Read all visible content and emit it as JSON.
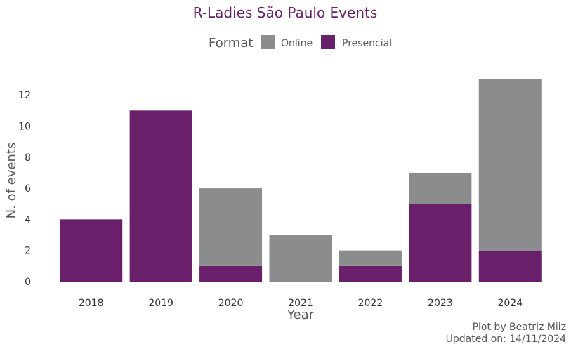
{
  "chart_data": {
    "type": "bar",
    "stacked": true,
    "title": "R-Ladies São Paulo Events",
    "xlabel": "Year",
    "ylabel": "N. of events",
    "categories": [
      "2018",
      "2019",
      "2020",
      "2021",
      "2022",
      "2023",
      "2024"
    ],
    "series": [
      {
        "name": "Presencial",
        "color": "#6a1f6a",
        "values": [
          4,
          11,
          1,
          0,
          1,
          5,
          2
        ]
      },
      {
        "name": "Online",
        "color": "#8a8c8e",
        "values": [
          0,
          0,
          5,
          3,
          1,
          2,
          11
        ]
      }
    ],
    "ylim": [
      0,
      13
    ],
    "yticks": [
      0,
      2,
      4,
      6,
      8,
      10,
      12
    ],
    "grid": false,
    "legend": {
      "title": "Format",
      "position": "top",
      "entries": [
        {
          "label": "Online",
          "color": "#8a8c8e"
        },
        {
          "label": "Presencial",
          "color": "#6a1f6a"
        }
      ]
    },
    "caption": [
      "Plot by Beatriz Milz",
      "Updated on: 14/11/2024"
    ]
  }
}
